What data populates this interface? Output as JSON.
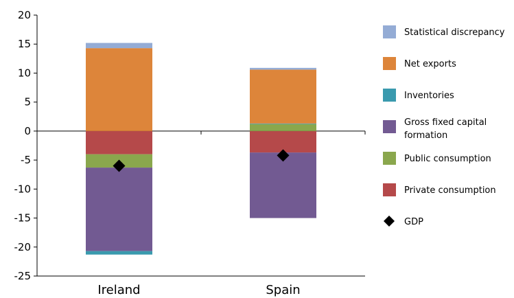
{
  "chart_data": {
    "type": "bar",
    "stacked": true,
    "categories": [
      "Ireland",
      "Spain"
    ],
    "ylim": [
      -25,
      20
    ],
    "yticks": [
      20,
      15,
      10,
      5,
      0,
      -5,
      -10,
      -15,
      -20,
      -25
    ],
    "grid": false,
    "legend_placement": "right",
    "series": [
      {
        "name": "Private consumption",
        "color": "#b5494a",
        "values": [
          -4.0,
          -3.7
        ]
      },
      {
        "name": "Public consumption",
        "color": "#8aa74d",
        "values": [
          -2.3,
          1.2
        ]
      },
      {
        "name": "Gross fixed capital formation",
        "color": "#725a92",
        "values": [
          -14.4,
          -11.3
        ]
      },
      {
        "name": "Inventories",
        "color": "#3a9aae",
        "values": [
          -0.6,
          0.1
        ]
      },
      {
        "name": "Net exports",
        "color": "#dd853a",
        "values": [
          14.3,
          9.3
        ]
      },
      {
        "name": "Statistical discrepancy",
        "color": "#94acd5",
        "values": [
          0.9,
          0.3
        ]
      }
    ],
    "gdp": {
      "name": "GDP",
      "color": "#000000",
      "values": [
        -6.0,
        -4.2
      ]
    },
    "legend_order": [
      "Statistical discrepancy",
      "Net exports",
      "Inventories",
      "Gross fixed capital formation",
      "Public consumption",
      "Private consumption",
      "GDP"
    ]
  }
}
